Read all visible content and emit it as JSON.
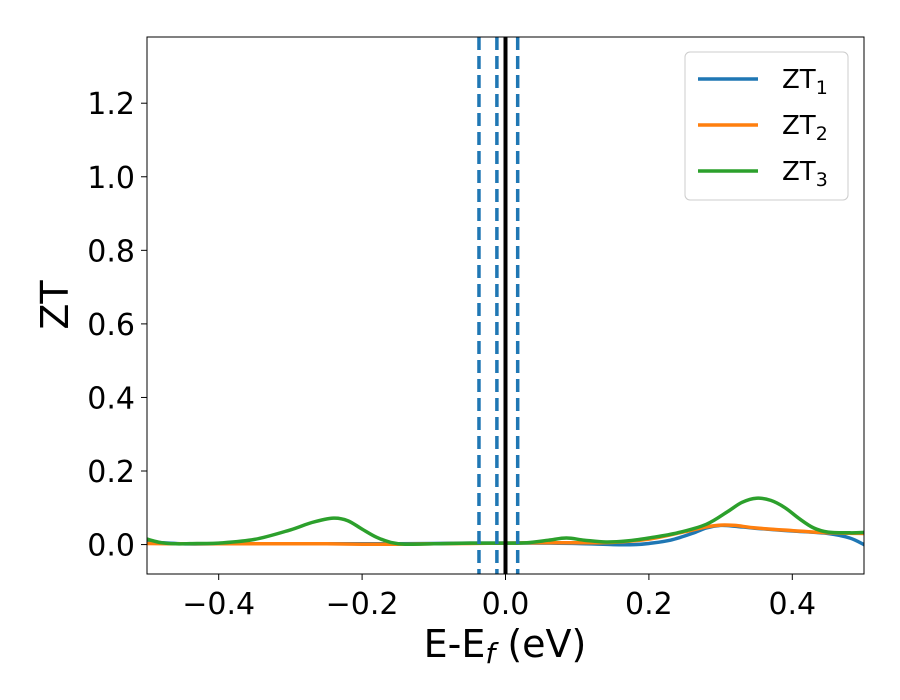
{
  "chart_data": {
    "type": "line",
    "xlabel": "E-E",
    "xlabel_sub": "f",
    "xlabel_unit": " (eV)",
    "ylabel": "ZT",
    "xlim": [
      -0.5,
      0.5
    ],
    "ylim": [
      -0.08,
      1.38
    ],
    "xticks": [
      -0.4,
      -0.2,
      0.0,
      0.2,
      0.4
    ],
    "xtick_labels": [
      "−0.4",
      "−0.2",
      "0.0",
      "0.2",
      "0.4"
    ],
    "yticks": [
      0.0,
      0.2,
      0.4,
      0.6,
      0.8,
      1.0,
      1.2
    ],
    "ytick_labels": [
      "0.0",
      "0.2",
      "0.4",
      "0.6",
      "0.8",
      "1.0",
      "1.2"
    ],
    "legend_position": "top-right",
    "vlines": [
      {
        "x": -0.037,
        "style": "dashed",
        "color": "#1f77b4"
      },
      {
        "x": -0.012,
        "style": "dashed",
        "color": "#1f77b4"
      },
      {
        "x": 0.017,
        "style": "dashed",
        "color": "#1f77b4"
      },
      {
        "x": 0.0,
        "style": "solid",
        "color": "#000000"
      }
    ],
    "series": [
      {
        "name": "ZT",
        "subscript": "1",
        "color": "#1f77b4",
        "points": [
          [
            -0.5,
            0.008
          ],
          [
            -0.45,
            0.002
          ],
          [
            -0.4,
            0.002
          ],
          [
            -0.35,
            0.002
          ],
          [
            -0.3,
            0.002
          ],
          [
            -0.25,
            0.002
          ],
          [
            -0.2,
            0.002
          ],
          [
            -0.15,
            0.002
          ],
          [
            -0.1,
            0.003
          ],
          [
            -0.05,
            0.004
          ],
          [
            0.0,
            0.004
          ],
          [
            0.05,
            0.004
          ],
          [
            0.1,
            0.003
          ],
          [
            0.15,
            0.0
          ],
          [
            0.18,
            0.0
          ],
          [
            0.2,
            0.003
          ],
          [
            0.23,
            0.012
          ],
          [
            0.26,
            0.03
          ],
          [
            0.28,
            0.045
          ],
          [
            0.3,
            0.052
          ],
          [
            0.32,
            0.05
          ],
          [
            0.35,
            0.044
          ],
          [
            0.4,
            0.037
          ],
          [
            0.45,
            0.03
          ],
          [
            0.48,
            0.018
          ],
          [
            0.5,
            0.0
          ]
        ]
      },
      {
        "name": "ZT",
        "subscript": "2",
        "color": "#ff7f0e",
        "points": [
          [
            -0.5,
            0.003
          ],
          [
            -0.45,
            0.002
          ],
          [
            -0.4,
            0.002
          ],
          [
            -0.35,
            0.002
          ],
          [
            -0.3,
            0.002
          ],
          [
            -0.25,
            0.002
          ],
          [
            -0.2,
            0.001
          ],
          [
            -0.15,
            0.001
          ],
          [
            -0.1,
            0.002
          ],
          [
            -0.05,
            0.003
          ],
          [
            0.0,
            0.004
          ],
          [
            0.05,
            0.005
          ],
          [
            0.1,
            0.005
          ],
          [
            0.15,
            0.006
          ],
          [
            0.2,
            0.015
          ],
          [
            0.25,
            0.035
          ],
          [
            0.28,
            0.048
          ],
          [
            0.3,
            0.053
          ],
          [
            0.32,
            0.052
          ],
          [
            0.35,
            0.045
          ],
          [
            0.4,
            0.038
          ],
          [
            0.45,
            0.032
          ],
          [
            0.5,
            0.03
          ]
        ]
      },
      {
        "name": "ZT",
        "subscript": "3",
        "color": "#2ca02c",
        "points": [
          [
            -0.5,
            0.015
          ],
          [
            -0.48,
            0.005
          ],
          [
            -0.46,
            0.002
          ],
          [
            -0.43,
            0.003
          ],
          [
            -0.4,
            0.004
          ],
          [
            -0.35,
            0.014
          ],
          [
            -0.3,
            0.04
          ],
          [
            -0.27,
            0.06
          ],
          [
            -0.24,
            0.072
          ],
          [
            -0.22,
            0.065
          ],
          [
            -0.2,
            0.042
          ],
          [
            -0.18,
            0.02
          ],
          [
            -0.16,
            0.006
          ],
          [
            -0.14,
            0.001
          ],
          [
            -0.1,
            0.002
          ],
          [
            -0.05,
            0.004
          ],
          [
            0.0,
            0.004
          ],
          [
            0.03,
            0.005
          ],
          [
            0.06,
            0.012
          ],
          [
            0.085,
            0.018
          ],
          [
            0.11,
            0.012
          ],
          [
            0.14,
            0.007
          ],
          [
            0.17,
            0.01
          ],
          [
            0.2,
            0.018
          ],
          [
            0.24,
            0.032
          ],
          [
            0.28,
            0.055
          ],
          [
            0.31,
            0.09
          ],
          [
            0.33,
            0.115
          ],
          [
            0.35,
            0.126
          ],
          [
            0.37,
            0.12
          ],
          [
            0.39,
            0.1
          ],
          [
            0.41,
            0.07
          ],
          [
            0.43,
            0.045
          ],
          [
            0.45,
            0.034
          ],
          [
            0.48,
            0.032
          ],
          [
            0.5,
            0.033
          ]
        ]
      }
    ]
  }
}
